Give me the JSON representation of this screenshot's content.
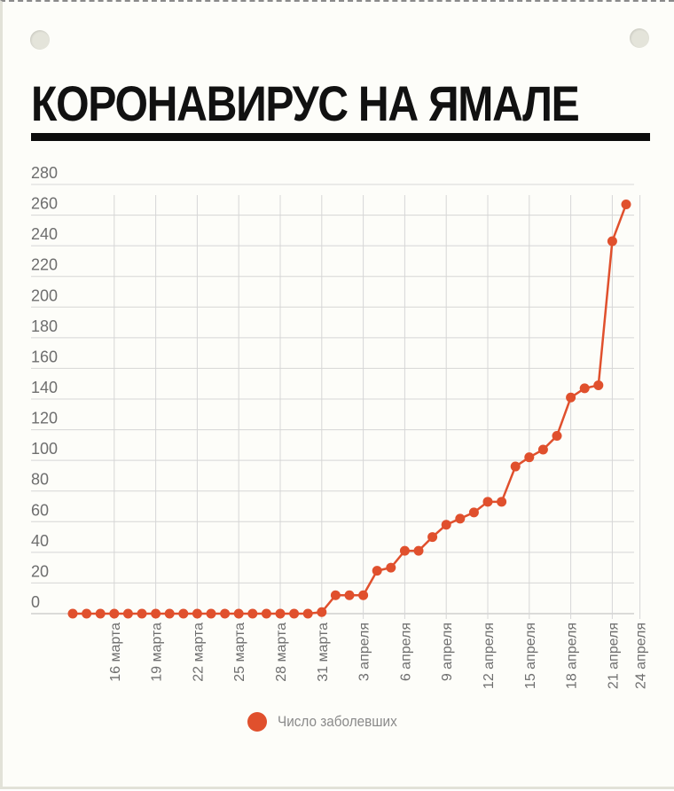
{
  "title": "КОРОНАВИРУС НА ЯМАЛЕ",
  "colors": {
    "series": "#e0502d",
    "grid": "#d6d6d6",
    "text": "#111111"
  },
  "chart_data": {
    "type": "line",
    "ylim": [
      0,
      280
    ],
    "y_ticks": [
      0,
      20,
      40,
      60,
      80,
      100,
      120,
      140,
      160,
      180,
      200,
      220,
      240,
      260,
      280
    ],
    "x_tick_labels": [
      "16 марта",
      "19 марта",
      "22 марта",
      "25 марта",
      "28 марта",
      "31 марта",
      "3 апреля",
      "6 апреля",
      "9 апреля",
      "12 апреля",
      "15 апреля",
      "18 апреля",
      "21 апреля",
      "24 апреля"
    ],
    "grid": true,
    "legend_position": "bottom",
    "series": [
      {
        "name": "Число заболевших",
        "values": [
          0,
          0,
          0,
          0,
          0,
          0,
          0,
          0,
          0,
          0,
          0,
          0,
          0,
          0,
          0,
          0,
          0,
          0,
          1,
          12,
          12,
          12,
          28,
          30,
          41,
          41,
          50,
          58,
          62,
          66,
          73,
          73,
          96,
          102,
          107,
          116,
          141,
          147,
          149,
          243,
          267
        ]
      }
    ]
  }
}
